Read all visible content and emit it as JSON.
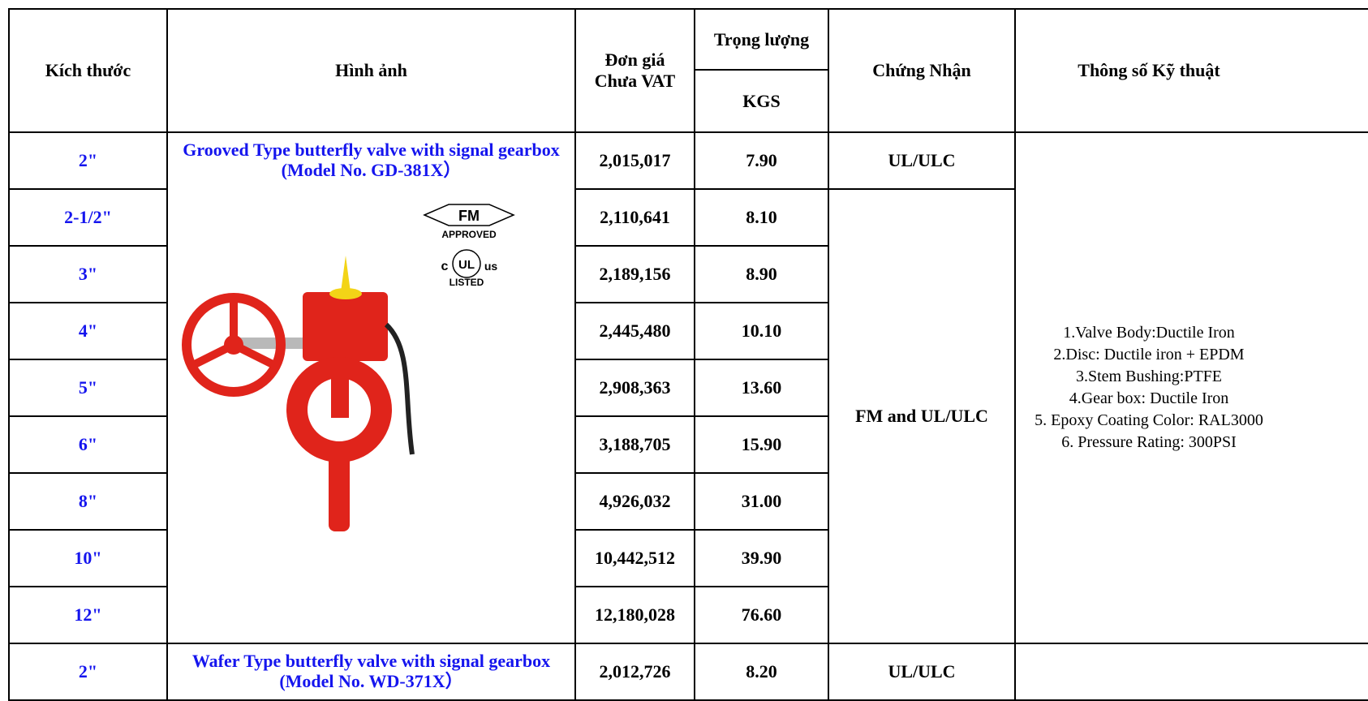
{
  "header": {
    "size": "Kích thước",
    "image": "Hình ảnh",
    "price_line1": "Đơn giá",
    "price_line2": "Chưa VAT",
    "weight": "Trọng lượng",
    "weight_unit": "KGS",
    "certification": "Chứng Nhận",
    "specs": "Thông số Kỹ thuật"
  },
  "products": [
    {
      "title": "Grooved Type butterfly valve with signal gearbox  (Model No. GD-381X）",
      "logos": {
        "fm": "FM",
        "fm_sub": "APPROVED",
        "ul_left": "c",
        "ul": "UL",
        "ul_right": "us",
        "ul_sub": "LISTED"
      },
      "rows": [
        {
          "size": "2\"",
          "price": "2,015,017",
          "weight": "7.90"
        },
        {
          "size": "2-1/2\"",
          "price": "2,110,641",
          "weight": "8.10"
        },
        {
          "size": "3\"",
          "price": "2,189,156",
          "weight": "8.90"
        },
        {
          "size": "4\"",
          "price": "2,445,480",
          "weight": "10.10"
        },
        {
          "size": "5\"",
          "price": "2,908,363",
          "weight": "13.60"
        },
        {
          "size": "6\"",
          "price": "3,188,705",
          "weight": "15.90"
        },
        {
          "size": "8\"",
          "price": "4,926,032",
          "weight": "31.00"
        },
        {
          "size": "10\"",
          "price": "10,442,512",
          "weight": "39.90"
        },
        {
          "size": "12\"",
          "price": "12,180,028",
          "weight": "76.60"
        }
      ],
      "certifications": [
        "UL/ULC",
        "FM and UL/ULC"
      ],
      "specs": [
        "1.Valve Body:Ductile Iron",
        "2.Disc: Ductile iron + EPDM",
        "3.Stem Bushing:PTFE",
        "4.Gear box: Ductile Iron",
        "5. Epoxy Coating Color: RAL3000",
        "6. Pressure Rating: 300PSI"
      ]
    },
    {
      "title": "Wafer Type butterfly valve with signal gearbox (Model No. WD-371X）",
      "rows": [
        {
          "size": "2\"",
          "price": "2,012,726",
          "weight": "8.20"
        }
      ],
      "certifications": [
        "UL/ULC"
      ]
    }
  ]
}
